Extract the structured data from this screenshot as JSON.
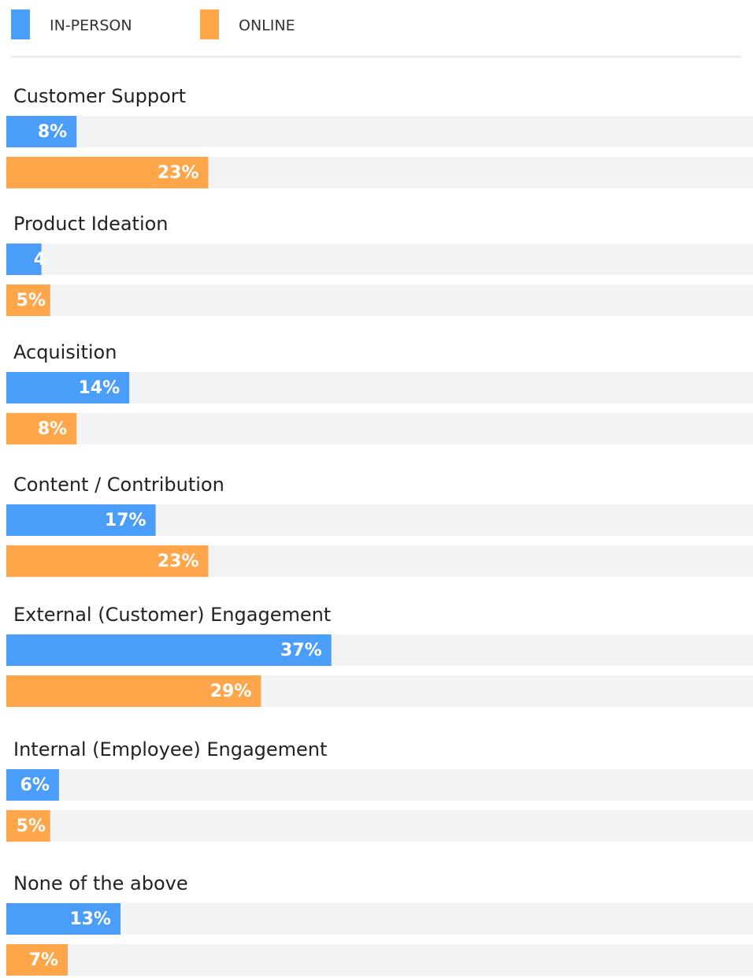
{
  "chart_data": {
    "type": "bar",
    "orientation": "horizontal",
    "categories": [
      "Customer Support",
      "Product Ideation",
      "Acquisition",
      "Content / Contribution",
      "External (Customer) Engagement",
      "Internal (Employee) Engagement",
      "None of the above"
    ],
    "series": [
      {
        "name": "IN-PERSON",
        "color": "#4a9df8",
        "values": [
          8,
          4,
          14,
          17,
          37,
          6,
          13
        ],
        "value_labels": [
          "8%",
          "4",
          "14%",
          "17%",
          "37%",
          "6%",
          "13%"
        ]
      },
      {
        "name": "ONLINE",
        "color": "#ffa54a",
        "values": [
          23,
          5,
          8,
          23,
          29,
          5,
          7
        ],
        "value_labels": [
          "23%",
          "5%",
          "8%",
          "23%",
          "29%",
          "5%",
          "7%"
        ]
      }
    ],
    "xlim": [
      0,
      85
    ],
    "legend": "top-left"
  }
}
